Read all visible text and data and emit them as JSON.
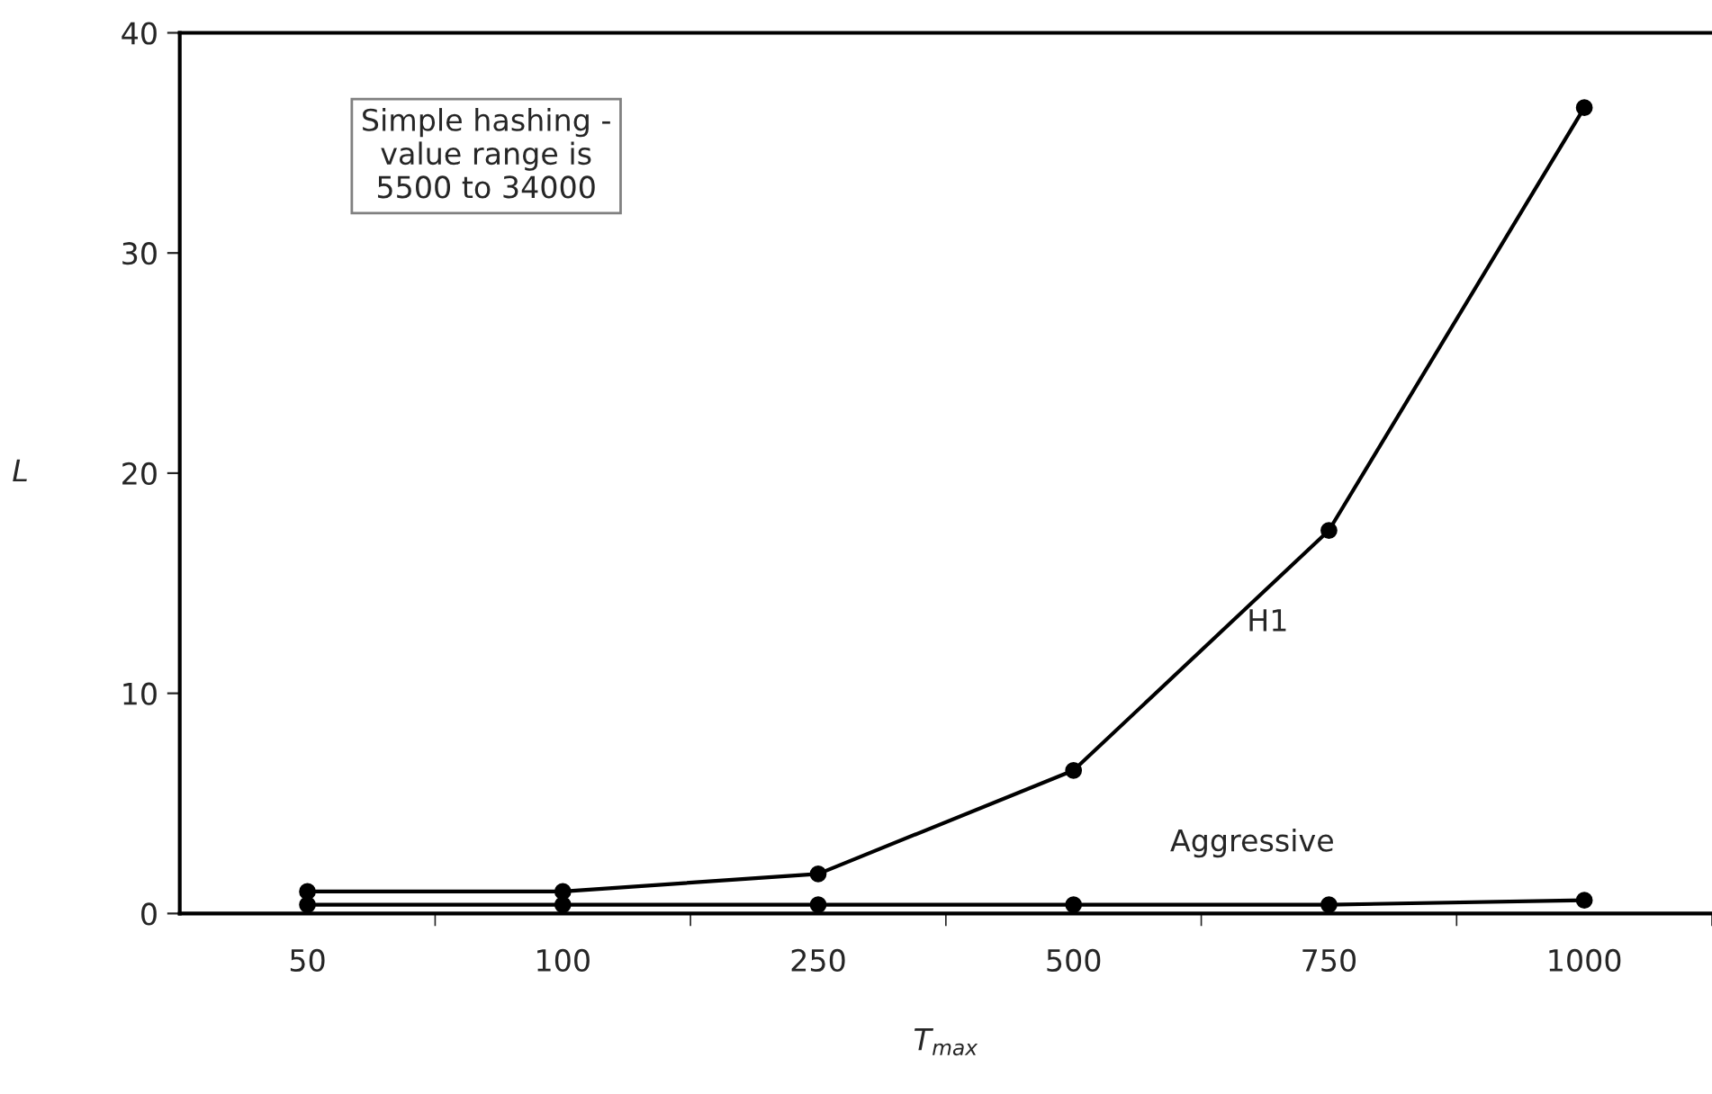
{
  "chart_data": {
    "type": "line",
    "xlabel": "T$_{max}$",
    "ylabel": "L",
    "categories": [
      "50",
      "100",
      "250",
      "500",
      "750",
      "1000"
    ],
    "series": [
      {
        "color": "#000000",
        "values": [
          1.0,
          1.0,
          1.8,
          6.5,
          17.4,
          36.6
        ]
      },
      {
        "color": "#000000",
        "values": [
          0.4,
          0.4,
          0.4,
          0.4,
          0.4,
          0.6
        ]
      }
    ],
    "annotations": [
      "Simple hashing -\nvalue range is\n5500 to 34000",
      "H1",
      "Aggressive"
    ],
    "ylim": [
      0,
      40
    ],
    "yticks": [
      0,
      10,
      20,
      30,
      40
    ],
    "grid": false,
    "legend": false,
    "marker": "circle",
    "line_style": "solid"
  }
}
